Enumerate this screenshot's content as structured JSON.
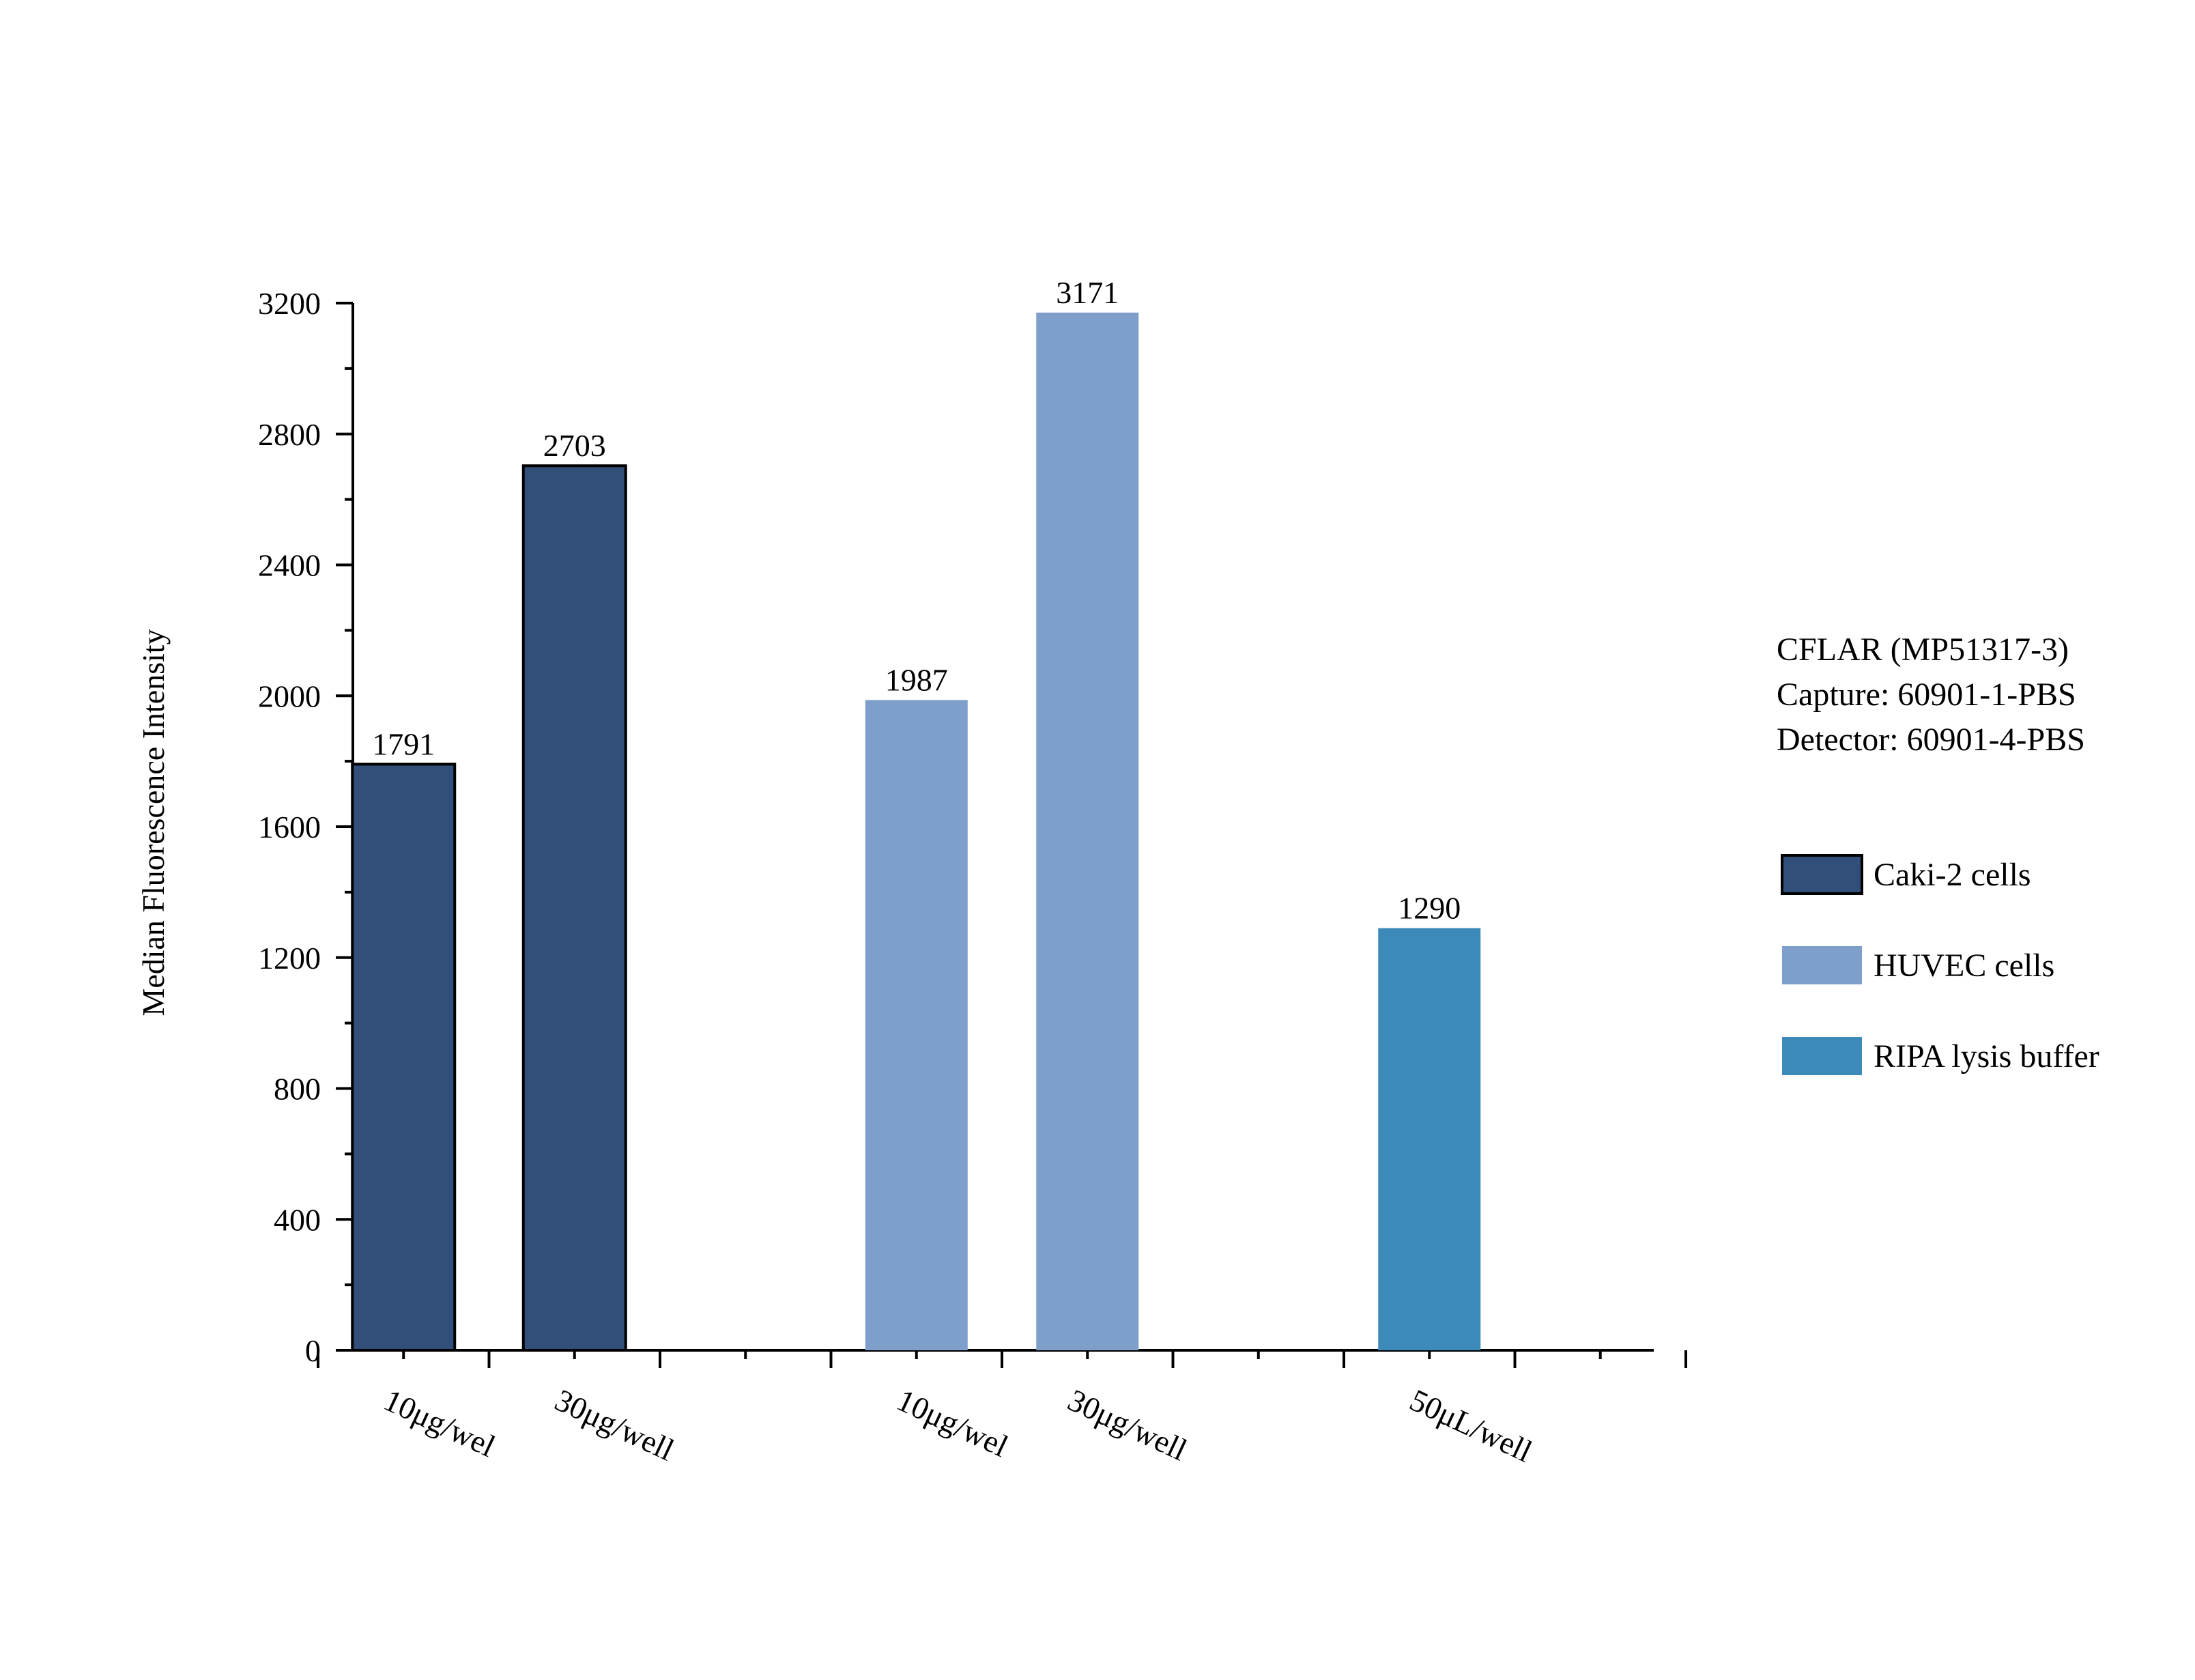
{
  "chart_data": {
    "type": "bar",
    "title": "",
    "xlabel": "",
    "ylabel": "Median Fluorescence Intensity",
    "ylim": [
      0,
      3200
    ],
    "yticks": [
      0,
      400,
      800,
      1200,
      1600,
      2000,
      2400,
      2800,
      3200
    ],
    "grid": false,
    "legend_position": "right",
    "categories": [
      "10μg/wel",
      "30μg/well",
      "10μg/wel",
      "30μg/well",
      "50μL/well"
    ],
    "bars": [
      {
        "category": "10μg/wel",
        "series": "Caki-2 cells",
        "value": 1791
      },
      {
        "category": "30μg/well",
        "series": "Caki-2 cells",
        "value": 2703
      },
      {
        "category": "10μg/wel",
        "series": "HUVEC cells",
        "value": 1987
      },
      {
        "category": "30μg/well",
        "series": "HUVEC cells",
        "value": 3171
      },
      {
        "category": "50μL/well",
        "series": "RIPA lysis buffer",
        "value": 1290
      }
    ],
    "series": [
      {
        "name": "Caki-2 cells",
        "color": "#314f78",
        "outlined": true
      },
      {
        "name": "HUVEC cells",
        "color": "#7f9fcb",
        "outlined": false
      },
      {
        "name": "RIPA lysis buffer",
        "color": "#3d8aba",
        "outlined": false
      }
    ],
    "annotation": {
      "line1": "CFLAR (MP51317-3)",
      "line2": "Capture: 60901-1-PBS",
      "line3": "Detector: 60901-4-PBS"
    }
  }
}
